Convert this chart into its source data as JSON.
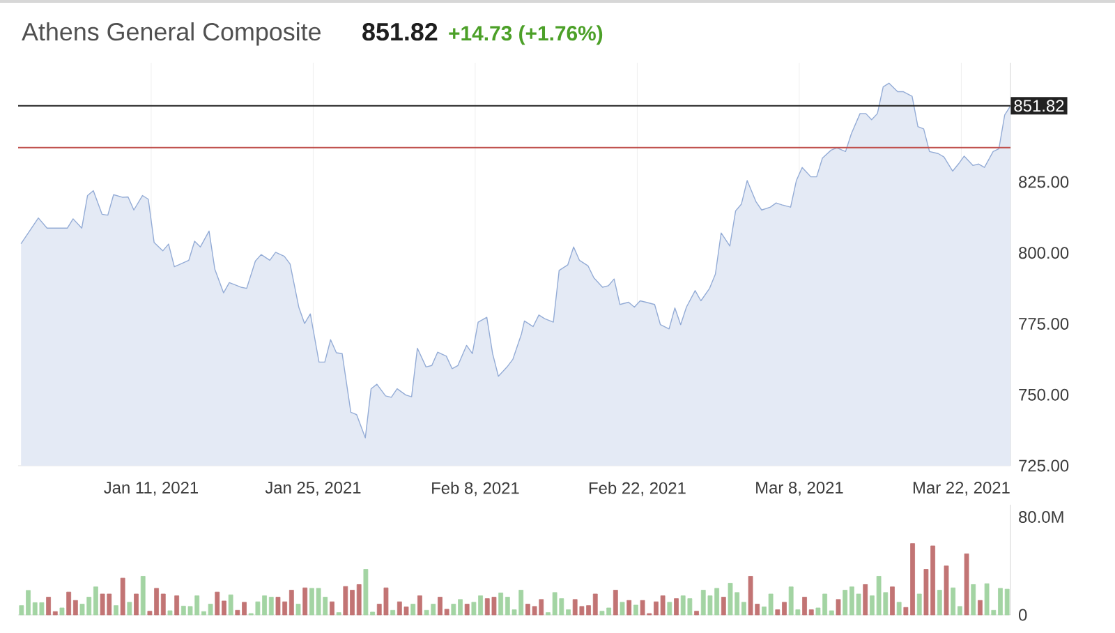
{
  "chart_data": [
    {
      "type": "area",
      "title": "Athens General Composite",
      "subtitle": "851.82",
      "annotations": [
        "+14.73  (+1.76%)"
      ],
      "color": "#94acd6",
      "grid": "x",
      "xlim": [
        "2020-12-30T12:00",
        "2021-03-26T06:00"
      ],
      "ylim": [
        725,
        867
      ],
      "xticks": [
        {
          "value": "2021-01-11",
          "label": "Jan 11, 2021"
        },
        {
          "value": "2021-01-25",
          "label": "Jan 25, 2021"
        },
        {
          "value": "2021-02-08",
          "label": "Feb 8, 2021"
        },
        {
          "value": "2021-02-22",
          "label": "Feb 22, 2021"
        },
        {
          "value": "2021-03-08",
          "label": "Mar 8, 2021"
        },
        {
          "value": "2021-03-22",
          "label": "Mar 22, 2021"
        }
      ],
      "yticks": [
        {
          "value": 725,
          "label": "725.00"
        },
        {
          "value": 750,
          "label": "750.00"
        },
        {
          "value": 775,
          "label": "775.00"
        },
        {
          "value": 800,
          "label": "800.00"
        },
        {
          "value": 825,
          "label": "825.00"
        }
      ],
      "ref_lines": [
        {
          "axis": "y",
          "value": 851.82,
          "label": "851.82",
          "color": "#222222"
        },
        {
          "axis": "y",
          "value": 837.1,
          "color": "#c0504d"
        }
      ],
      "x": [
        "2020-12-30T18:00",
        "2021-01-01T06:00",
        "2021-01-02T00:00",
        "2021-01-03T18:00",
        "2021-01-04T06:00",
        "2021-01-05T00:00",
        "2021-01-05T12:00",
        "2021-01-06T00:00",
        "2021-01-06T18:00",
        "2021-01-07T06:00",
        "2021-01-07T18:00",
        "2021-01-08T12:00",
        "2021-01-09T00:00",
        "2021-01-09T12:00",
        "2021-01-10T06:00",
        "2021-01-10T18:00",
        "2021-01-11T06:00",
        "2021-01-12T00:00",
        "2021-01-12T12:00",
        "2021-01-13T00:00",
        "2021-01-14T06:00",
        "2021-01-14T18:00",
        "2021-01-15T06:00",
        "2021-01-16T00:00",
        "2021-01-16T12:00",
        "2021-01-17T06:00",
        "2021-01-17T18:00",
        "2021-01-18T18:00",
        "2021-01-19T06:00",
        "2021-01-20T00:00",
        "2021-01-20T12:00",
        "2021-01-21T06:00",
        "2021-01-21T18:00",
        "2021-01-22T12:00",
        "2021-01-23T00:00",
        "2021-01-23T18:00",
        "2021-01-24T06:00",
        "2021-01-24T18:00",
        "2021-01-25T12:00",
        "2021-01-26T00:00",
        "2021-01-26T12:00",
        "2021-01-27T00:00",
        "2021-01-27T12:00",
        "2021-01-28T06:00",
        "2021-01-28T18:00",
        "2021-01-29T12:00",
        "2021-01-30T00:00",
        "2021-01-30T12:00",
        "2021-01-31T06:00",
        "2021-01-31T18:00",
        "2021-02-01T06:00",
        "2021-02-02T00:00",
        "2021-02-02T12:00",
        "2021-02-03T00:00",
        "2021-02-03T18:00",
        "2021-02-04T06:00",
        "2021-02-04T18:00",
        "2021-02-05T12:00",
        "2021-02-06T00:00",
        "2021-02-06T12:00",
        "2021-02-07T06:00",
        "2021-02-07T18:00",
        "2021-02-08T06:00",
        "2021-02-09T00:00",
        "2021-02-09T12:00",
        "2021-02-10T00:00",
        "2021-02-10T18:00",
        "2021-02-11T06:00",
        "2021-02-12T00:00",
        "2021-02-12T06:00",
        "2021-02-13T00:00",
        "2021-02-13T12:00",
        "2021-02-14T00:00",
        "2021-02-14T18:00",
        "2021-02-15T06:00",
        "2021-02-16T00:00",
        "2021-02-16T12:00",
        "2021-02-17T00:00",
        "2021-02-17T18:00",
        "2021-02-18T06:00",
        "2021-02-19T00:00",
        "2021-02-19T12:00",
        "2021-02-20T00:00",
        "2021-02-20T12:00",
        "2021-02-21T06:00",
        "2021-02-21T18:00",
        "2021-02-22T06:00",
        "2021-02-22T18:00",
        "2021-02-23T12:00",
        "2021-02-24T00:00",
        "2021-02-24T18:00",
        "2021-02-25T06:00",
        "2021-02-25T18:00",
        "2021-02-26T06:00",
        "2021-02-27T00:00",
        "2021-02-27T12:00",
        "2021-02-28T06:00",
        "2021-02-28T18:00",
        "2021-03-01T06:00",
        "2021-03-02T00:00",
        "2021-03-02T12:00",
        "2021-03-03T00:00",
        "2021-03-03T12:00",
        "2021-03-04T06:00",
        "2021-03-04T18:00",
        "2021-03-05T12:00",
        "2021-03-06T00:00",
        "2021-03-06T12:00",
        "2021-03-07T06:00",
        "2021-03-07T18:00",
        "2021-03-08T06:00",
        "2021-03-09T00:00",
        "2021-03-09T12:00",
        "2021-03-10T00:00",
        "2021-03-10T18:00",
        "2021-03-11T06:00",
        "2021-03-12T00:00",
        "2021-03-12T12:00",
        "2021-03-13T06:00",
        "2021-03-13T18:00",
        "2021-03-14T06:00",
        "2021-03-14T18:00",
        "2021-03-15T06:00",
        "2021-03-15T18:00",
        "2021-03-16T12:00",
        "2021-03-17T00:00",
        "2021-03-17T18:00",
        "2021-03-18T06:00",
        "2021-03-18T18:00",
        "2021-03-19T06:00",
        "2021-03-20T00:00",
        "2021-03-20T12:00",
        "2021-03-21T06:00",
        "2021-03-21T18:00",
        "2021-03-22T06:00",
        "2021-03-23T00:00",
        "2021-03-23T12:00",
        "2021-03-24T00:00",
        "2021-03-24T18:00",
        "2021-03-25T06:00",
        "2021-03-25T18:00",
        "2021-03-26T06:00"
      ],
      "values": [
        803.2,
        812.3,
        808.7,
        808.7,
        812.0,
        808.7,
        820.2,
        821.9,
        813.6,
        813.3,
        820.5,
        819.6,
        819.7,
        815.1,
        820.2,
        818.9,
        803.7,
        800.7,
        803.1,
        795.1,
        797.4,
        804.1,
        802.1,
        807.7,
        794.2,
        785.9,
        789.5,
        787.9,
        787.5,
        797.1,
        799.4,
        797.4,
        800.2,
        798.8,
        796.1,
        780.9,
        775.1,
        778.5,
        761.5,
        761.5,
        769.4,
        764.8,
        764.5,
        743.8,
        743.0,
        734.8,
        752.1,
        753.7,
        749.6,
        749.1,
        752.1,
        749.9,
        749.3,
        766.4,
        759.8,
        760.3,
        765.0,
        763.6,
        759.2,
        760.3,
        767.4,
        764.5,
        775.6,
        777.3,
        764.5,
        756.5,
        759.8,
        762.5,
        771.5,
        776.0,
        774.0,
        778.1,
        776.8,
        775.6,
        793.8,
        795.8,
        802.1,
        797.4,
        795.4,
        791.2,
        787.9,
        788.4,
        790.8,
        781.8,
        782.6,
        780.9,
        783.1,
        782.6,
        781.8,
        774.7,
        773.2,
        780.6,
        774.7,
        780.9,
        786.7,
        783.1,
        787.5,
        792.5,
        807.0,
        802.4,
        814.8,
        817.2,
        825.5,
        818.1,
        815.1,
        816.1,
        817.6,
        816.9,
        816.1,
        825.5,
        830.1,
        826.8,
        826.8,
        833.4,
        836.2,
        837.0,
        835.7,
        842.0,
        849.1,
        849.1,
        846.9,
        849.1,
        858.5,
        859.8,
        856.8,
        856.8,
        855.2,
        844.5,
        843.7,
        835.7,
        835.0,
        833.8,
        828.8,
        831.3,
        834.1,
        830.8,
        831.3,
        830.1,
        835.7,
        836.7,
        848.6,
        851.82
      ]
    },
    {
      "type": "bar",
      "tick_labels": "y",
      "ylim": [
        0,
        90
      ],
      "yticks": [
        0,
        {
          "value": 80,
          "label": "80.0M"
        }
      ],
      "categories": [
        null,
        null,
        null,
        null,
        null,
        null,
        null,
        null,
        null,
        null,
        null,
        null,
        null,
        null,
        null,
        null,
        null,
        null,
        null,
        null,
        null,
        null,
        null,
        null,
        null,
        null,
        null,
        null,
        null,
        null,
        null,
        null,
        null,
        null,
        null,
        null,
        null,
        null,
        null,
        null,
        null,
        null,
        null,
        null,
        null,
        null,
        null,
        null,
        null,
        null,
        null,
        null,
        null,
        null,
        null,
        null,
        null,
        null,
        null,
        null,
        null,
        null,
        null,
        null,
        null,
        null,
        null,
        null,
        null,
        null,
        null,
        null,
        null,
        null,
        null,
        null,
        null,
        null,
        null,
        null,
        null,
        null,
        null,
        null,
        null,
        null,
        null,
        null,
        null,
        null,
        null,
        null,
        null,
        null,
        null,
        null,
        null,
        null,
        null,
        null,
        null,
        null,
        null,
        null,
        null,
        null,
        null,
        null,
        null,
        null,
        null,
        null,
        null,
        null,
        null,
        null,
        null,
        null,
        null,
        null,
        null,
        null,
        null,
        null,
        null,
        null,
        null,
        null,
        null,
        null,
        null,
        null,
        null,
        null,
        null,
        null,
        null,
        null,
        null,
        null,
        null,
        null,
        null,
        null,
        null,
        null,
        null
      ],
      "values": [
        7.6,
        20,
        10,
        10,
        14.5,
        2.7,
        5.7,
        18.7,
        11.8,
        8.8,
        14.5,
        22.9,
        17.1,
        17.1,
        7.6,
        30.1,
        10.3,
        17.1,
        31.6,
        3.0,
        21.7,
        17.1,
        3.4,
        15.6,
        7.2,
        6.9,
        15.6,
        2.7,
        8.8,
        18.7,
        11.4,
        16.4,
        3.8,
        10.3,
        1.1,
        10.7,
        15.6,
        14.5,
        14.5,
        10.7,
        20.2,
        8.8,
        22.1,
        21.7,
        21.7,
        14.5,
        10.7,
        1.9,
        23.2,
        20.2,
        24.8,
        37.3,
        2.3,
        8.8,
        22.1,
        3.8,
        10.7,
        6.5,
        8.8,
        15.6,
        3.8,
        8.8,
        14.5,
        4.6,
        8.8,
        12.6,
        8.8,
        10.3,
        15.6,
        13.3,
        14.5,
        17.9,
        14.5,
        4.2,
        20.2,
        8.8,
        6.9,
        12.6,
        1.9,
        18.3,
        13.3,
        4.2,
        12.6,
        6.9,
        7.6,
        17.1,
        3.0,
        5.7,
        20.2,
        10.3,
        11.8,
        8.0,
        11.8,
        1.1,
        10.7,
        15.6,
        10.3,
        13.3,
        15.6,
        13.3,
        3.0,
        20.2,
        15.6,
        21.7,
        14.5,
        25.9,
        18.3,
        10.3,
        31.6,
        8.8,
        6.5,
        17.1,
        4.2,
        10.3,
        22.9,
        4.2,
        14.5,
        4.2,
        5.7,
        17.1,
        3.4,
        12.6,
        20.2,
        22.9,
        17.1,
        24.8,
        15.6,
        31.6,
        18.3,
        22.9,
        10.3,
        6.1,
        58.3,
        17.1,
        37.3,
        56.4,
        20.2,
        40.0,
        22.1,
        6.9,
        49.9,
        24.8,
        11.8,
        25.5,
        3.8,
        21.7,
        21.0
      ],
      "colors": [
        "#a3d4a3",
        "#a3d4a3",
        "#a3d4a3",
        "#a3d4a3",
        "#c27474",
        "#c27474",
        "#a3d4a3",
        "#c27474",
        "#c27474",
        "#a3d4a3",
        "#a3d4a3",
        "#a3d4a3",
        "#c27474",
        "#c27474",
        "#a3d4a3",
        "#c27474",
        "#a3d4a3",
        "#c27474",
        "#a3d4a3",
        "#c27474",
        "#c27474",
        "#c27474",
        "#a3d4a3",
        "#c27474",
        "#a3d4a3",
        "#a3d4a3",
        "#a3d4a3",
        "#a3d4a3",
        "#a3d4a3",
        "#c27474",
        "#c27474",
        "#a3d4a3",
        "#c27474",
        "#c27474",
        "#a3d4a3",
        "#a3d4a3",
        "#a3d4a3",
        "#a3d4a3",
        "#c27474",
        "#c27474",
        "#c27474",
        "#a3d4a3",
        "#c27474",
        "#a3d4a3",
        "#a3d4a3",
        "#a3d4a3",
        "#c27474",
        "#a3d4a3",
        "#c27474",
        "#c27474",
        "#c27474",
        "#a3d4a3",
        "#a3d4a3",
        "#c27474",
        "#c27474",
        "#a3d4a3",
        "#c27474",
        "#c27474",
        "#a3d4a3",
        "#c27474",
        "#a3d4a3",
        "#a3d4a3",
        "#c27474",
        "#c27474",
        "#a3d4a3",
        "#a3d4a3",
        "#c27474",
        "#a3d4a3",
        "#a3d4a3",
        "#c27474",
        "#c27474",
        "#a3d4a3",
        "#a3d4a3",
        "#a3d4a3",
        "#a3d4a3",
        "#c27474",
        "#c27474",
        "#c27474",
        "#a3d4a3",
        "#a3d4a3",
        "#a3d4a3",
        "#a3d4a3",
        "#c27474",
        "#c27474",
        "#c27474",
        "#c27474",
        "#a3d4a3",
        "#a3d4a3",
        "#c27474",
        "#a3d4a3",
        "#c27474",
        "#a3d4a3",
        "#c27474",
        "#c27474",
        "#c27474",
        "#c27474",
        "#a3d4a3",
        "#c27474",
        "#a3d4a3",
        "#a3d4a3",
        "#c27474",
        "#a3d4a3",
        "#a3d4a3",
        "#a3d4a3",
        "#c27474",
        "#a3d4a3",
        "#a3d4a3",
        "#a3d4a3",
        "#c27474",
        "#c27474",
        "#a3d4a3",
        "#a3d4a3",
        "#c27474",
        "#c27474",
        "#a3d4a3",
        "#a3d4a3",
        "#c27474",
        "#c27474",
        "#a3d4a3",
        "#a3d4a3",
        "#a3d4a3",
        "#c27474",
        "#a3d4a3",
        "#a3d4a3",
        "#a3d4a3",
        "#c27474",
        "#a3d4a3",
        "#a3d4a3",
        "#a3d4a3",
        "#c27474",
        "#a3d4a3",
        "#c27474",
        "#c27474",
        "#a3d4a3",
        "#c27474",
        "#c27474",
        "#a3d4a3",
        "#c27474",
        "#a3d4a3",
        "#a3d4a3",
        "#c27474",
        "#a3d4a3",
        "#c27474",
        "#a3d4a3",
        "#a3d4a3",
        "#a3d4a3",
        "#a3d4a3"
      ]
    }
  ]
}
